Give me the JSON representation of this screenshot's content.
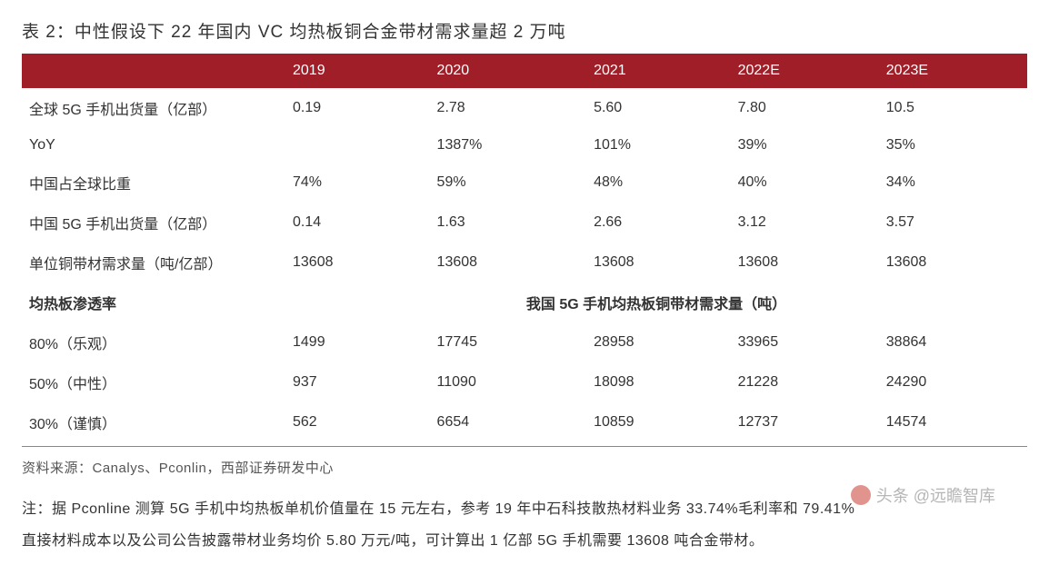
{
  "title": "表 2：中性假设下 22 年国内 VC 均热板铜合金带材需求量超 2 万吨",
  "header": {
    "col0": "",
    "col1": "2019",
    "col2": "2020",
    "col3": "2021",
    "col4": "2022E",
    "col5": "2023E"
  },
  "rows": [
    {
      "label": "全球 5G 手机出货量（亿部）",
      "c1": "0.19",
      "c2": "2.78",
      "c3": "5.60",
      "c4": "7.80",
      "c5": "10.5"
    },
    {
      "label": "YoY",
      "c1": "",
      "c2": "1387%",
      "c3": "101%",
      "c4": "39%",
      "c5": "35%"
    },
    {
      "label": "中国占全球比重",
      "c1": "74%",
      "c2": "59%",
      "c3": "48%",
      "c4": "40%",
      "c5": "34%"
    },
    {
      "label": "中国 5G 手机出货量（亿部）",
      "c1": "0.14",
      "c2": "1.63",
      "c3": "2.66",
      "c4": "3.12",
      "c5": "3.57"
    },
    {
      "label": "单位铜带材需求量（吨/亿部）",
      "c1": "13608",
      "c2": "13608",
      "c3": "13608",
      "c4": "13608",
      "c5": "13608"
    }
  ],
  "section": {
    "left_label": "均热板渗透率",
    "center_label": "我国 5G 手机均热板铜带材需求量（吨）"
  },
  "scenario_rows": [
    {
      "label": "80%（乐观）",
      "c1": "1499",
      "c2": "17745",
      "c3": "28958",
      "c4": "33965",
      "c5": "38864"
    },
    {
      "label": "50%（中性）",
      "c1": "937",
      "c2": "11090",
      "c3": "18098",
      "c4": "21228",
      "c5": "24290"
    },
    {
      "label": "30%（谨慎）",
      "c1": "562",
      "c2": "6654",
      "c3": "10859",
      "c4": "12737",
      "c5": "14574"
    }
  ],
  "source": "资料来源：Canalys、Pconlin，西部证券研发中心",
  "note_line1": "注：据 Pconline 测算 5G 手机中均热板单机价值量在 15 元左右，参考 19 年中石科技散热材料业务 33.74%毛利率和 79.41%",
  "note_line2": "直接材料成本以及公司公告披露带材业务均价 5.80 万元/吨，可计算出 1 亿部 5G 手机需要 13608 吨合金带材。",
  "watermark": "头条 @远瞻智库",
  "colors": {
    "header_bg": "#a01e28",
    "header_text": "#ffffff",
    "body_text": "#333333",
    "border": "#888888"
  }
}
